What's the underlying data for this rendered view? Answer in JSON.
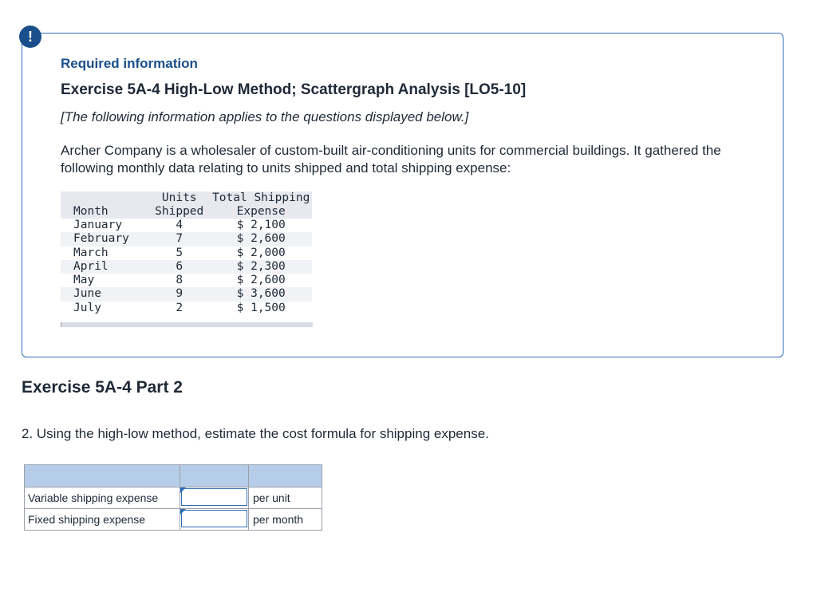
{
  "alert": {
    "symbol": "!"
  },
  "info": {
    "required_label": "Required information",
    "exercise_title": "Exercise 5A-4 High-Low Method; Scattergraph Analysis [LO5-10]",
    "note": "[The following information applies to the questions displayed below.]",
    "description": "Archer Company is a wholesaler of custom-built air-conditioning units for commercial buildings. It gathered the following monthly data relating to units shipped and total shipping expense:"
  },
  "data_table": {
    "headers": {
      "month": "Month",
      "units_line1": "Units",
      "units_line2": "Shipped",
      "expense_line1": "Total Shipping",
      "expense_line2": "Expense"
    },
    "rows": [
      {
        "month": "January",
        "units": "4",
        "expense": "$ 2,100"
      },
      {
        "month": "February",
        "units": "7",
        "expense": "$ 2,600"
      },
      {
        "month": "March",
        "units": "5",
        "expense": "$ 2,000"
      },
      {
        "month": "April",
        "units": "6",
        "expense": "$ 2,300"
      },
      {
        "month": "May",
        "units": "8",
        "expense": "$ 2,600"
      },
      {
        "month": "June",
        "units": "9",
        "expense": "$ 3,600"
      },
      {
        "month": "July",
        "units": "2",
        "expense": "$ 1,500"
      }
    ]
  },
  "part": {
    "title": "Exercise 5A-4 Part 2",
    "question": "2. Using the high-low method, estimate the cost formula for shipping expense."
  },
  "answer_table": {
    "rows": [
      {
        "label": "Variable shipping expense",
        "value": "",
        "unit": "per unit"
      },
      {
        "label": "Fixed shipping expense",
        "value": "",
        "unit": "per month"
      }
    ]
  }
}
